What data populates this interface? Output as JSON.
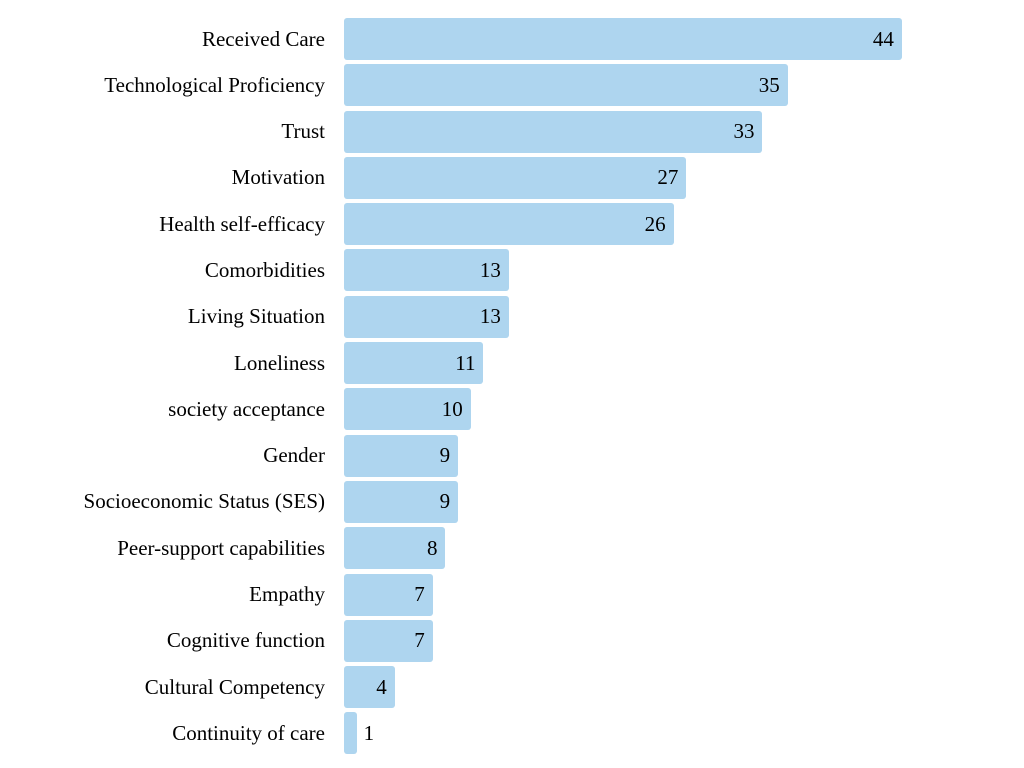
{
  "chart_data": {
    "type": "bar",
    "orientation": "horizontal",
    "title": "",
    "xlabel": "",
    "ylabel": "",
    "categories": [
      "Received Care",
      "Technological Proficiency",
      "Trust",
      "Motivation",
      "Health self-efficacy",
      "Comorbidities",
      "Living Situation",
      "Loneliness",
      "society acceptance",
      "Gender",
      "Socioeconomic Status (SES)",
      "Peer-support capabilities",
      "Empathy",
      "Cognitive function",
      "Cultural Competency",
      "Continuity of care"
    ],
    "values": [
      44,
      35,
      33,
      27,
      26,
      13,
      13,
      11,
      10,
      9,
      9,
      8,
      7,
      7,
      4,
      1
    ],
    "xlim": [
      0,
      53
    ],
    "grid": false,
    "legend": null,
    "axes_visible": false,
    "value_label_position": "end-of-bar",
    "bar_color": "#AED5EF",
    "text_color": "#000000",
    "background_color": "#FFFFFF"
  }
}
